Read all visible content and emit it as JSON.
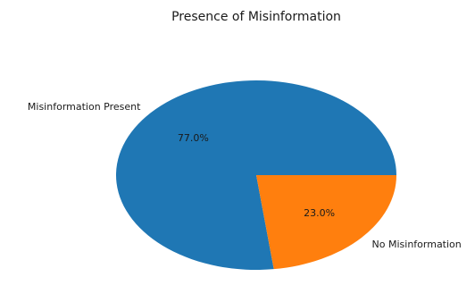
{
  "chart_data": {
    "type": "pie",
    "title": "Presence of Misinformation",
    "labels": [
      "Misinformation Present",
      "No Misinformation"
    ],
    "values": [
      77.0,
      23.0
    ],
    "value_labels": [
      "77.0%",
      "23.0%"
    ],
    "colors": [
      "#1f77b4",
      "#ff7f0e"
    ],
    "start_angle_deg": 0,
    "direction": "counterclockwise",
    "legend": "none"
  }
}
